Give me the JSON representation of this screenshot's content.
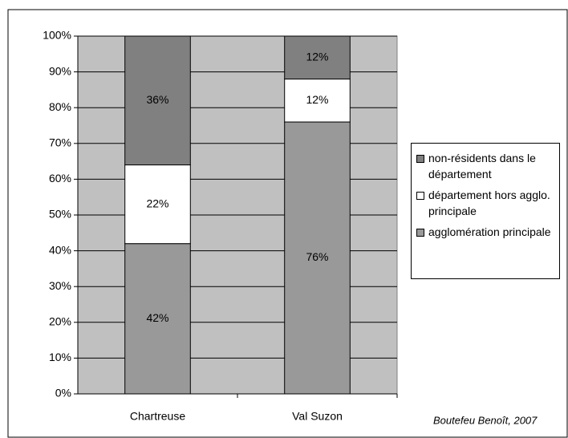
{
  "chart_data": {
    "type": "stacked_bar",
    "categories": [
      "Chartreuse",
      "Val Suzon"
    ],
    "series": [
      {
        "name": "agglomération principale",
        "color": "#999999",
        "values": [
          42,
          76
        ],
        "value_labels": [
          "42%",
          "76%"
        ]
      },
      {
        "name": "département hors agglo. principale",
        "color": "#ffffff",
        "values": [
          22,
          12
        ],
        "value_labels": [
          "22%",
          "12%"
        ]
      },
      {
        "name": "non-résidents dans le département",
        "color": "#808080",
        "values": [
          36,
          12
        ],
        "value_labels": [
          "36%",
          "12%"
        ]
      }
    ],
    "ylim": [
      0,
      100
    ],
    "yticks": [
      {
        "value": 0,
        "label": "0%"
      },
      {
        "value": 10,
        "label": "10%"
      },
      {
        "value": 20,
        "label": "20%"
      },
      {
        "value": 30,
        "label": "30%"
      },
      {
        "value": 40,
        "label": "40%"
      },
      {
        "value": 50,
        "label": "50%"
      },
      {
        "value": 60,
        "label": "60%"
      },
      {
        "value": 70,
        "label": "70%"
      },
      {
        "value": 80,
        "label": "80%"
      },
      {
        "value": 90,
        "label": "90%"
      },
      {
        "value": 100,
        "label": "100%"
      }
    ],
    "grid": true,
    "background": "#c0c0c0",
    "source": "Boutefeu Benoît, 2007"
  }
}
